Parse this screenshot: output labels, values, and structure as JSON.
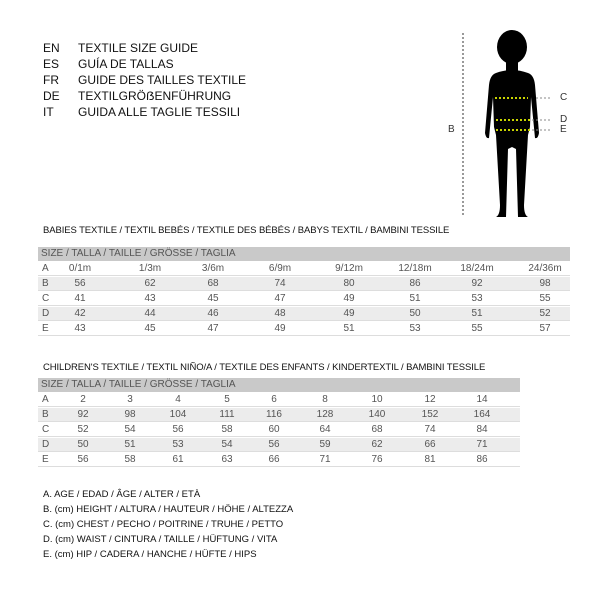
{
  "languages": [
    {
      "code": "EN",
      "title": "TEXTILE SIZE GUIDE"
    },
    {
      "code": "ES",
      "title": "GUÍA DE TALLAS"
    },
    {
      "code": "FR",
      "title": "GUIDE DES TAILLES TEXTILE"
    },
    {
      "code": "DE",
      "title": "TEXTILGRÖẞENFÜHRUNG"
    },
    {
      "code": "IT",
      "title": "GUIDA ALLE TAGLIE TESSILI"
    }
  ],
  "figure": {
    "labels": {
      "b": "B",
      "c": "C",
      "d": "D",
      "e": "E"
    },
    "measure_line_color": "#c8d400"
  },
  "babies": {
    "title": "BABIES TEXTILE / TEXTIL BEBÉS / TEXTILE DES BÉBÉS / BABYS TEXTIL  / BAMBINI TESSILE",
    "header": "SIZE / TALLA / TAILLE / GRÖSSE / TAGLIA",
    "rows": [
      {
        "label": "A",
        "values": [
          "0/1m",
          "1/3m",
          "3/6m",
          "6/9m",
          "9/12m",
          "12/18m",
          "18/24m",
          "24/36m"
        ]
      },
      {
        "label": "B",
        "values": [
          "56",
          "62",
          "68",
          "74",
          "80",
          "86",
          "92",
          "98"
        ]
      },
      {
        "label": "C",
        "values": [
          "41",
          "43",
          "45",
          "47",
          "49",
          "51",
          "53",
          "55"
        ]
      },
      {
        "label": "D",
        "values": [
          "42",
          "44",
          "46",
          "48",
          "49",
          "50",
          "51",
          "52"
        ]
      },
      {
        "label": "E",
        "values": [
          "43",
          "45",
          "47",
          "49",
          "51",
          "53",
          "55",
          "57"
        ]
      }
    ]
  },
  "children": {
    "title": "CHILDREN'S TEXTILE / TEXTIL NIÑO/A / TEXTILE DES ENFANTS / KINDERTEXTIL / BAMBINI TESSILE",
    "header": "SIZE / TALLA / TAILLE / GRÖSSE / TAGLIA",
    "rows": [
      {
        "label": "A",
        "values": [
          "2",
          "3",
          "4",
          "5",
          "6",
          "8",
          "10",
          "12",
          "14"
        ]
      },
      {
        "label": "B",
        "values": [
          "92",
          "98",
          "104",
          "111",
          "116",
          "128",
          "140",
          "152",
          "164"
        ]
      },
      {
        "label": "C",
        "values": [
          "52",
          "54",
          "56",
          "58",
          "60",
          "64",
          "68",
          "74",
          "84"
        ]
      },
      {
        "label": "D",
        "values": [
          "50",
          "51",
          "53",
          "54",
          "56",
          "59",
          "62",
          "66",
          "71"
        ]
      },
      {
        "label": "E",
        "values": [
          "56",
          "58",
          "61",
          "63",
          "66",
          "71",
          "76",
          "81",
          "86"
        ]
      }
    ]
  },
  "legend": [
    "A. AGE / EDAD / ÂGE / ALTER / ETÀ",
    "B. (cm) HEIGHT / ALTURA / HAUTEUR / HÖHE / ALTEZZA",
    "C. (cm) CHEST / PECHO / POITRINE / TRUHE / PETTO",
    "D. (cm) WAIST / CINTURA / TAILLE / HÜFTUNG / VITA",
    "E. (cm) HIP / CADERA / HANCHE / HÜFTE / HIPS"
  ]
}
